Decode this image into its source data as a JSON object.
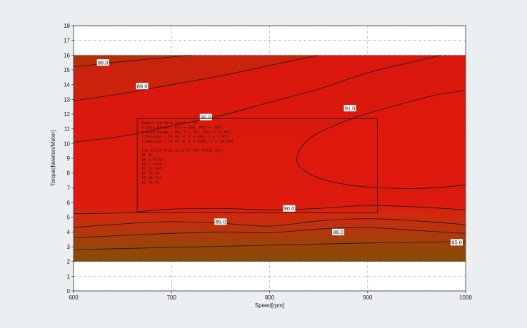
{
  "chart_data": {
    "type": "contour",
    "xlabel": "Speed[rpm]",
    "ylabel": "Torque[Newton/Meter]",
    "xlim": [
      600,
      1000
    ],
    "ylim": [
      0,
      18
    ],
    "xticks": [
      "600",
      "700",
      "800",
      "900",
      "1000"
    ],
    "yticks": [
      "0",
      "1",
      "2",
      "3",
      "4",
      "5",
      "6",
      "7",
      "8",
      "9",
      "10",
      "11",
      "12",
      "13",
      "14",
      "15",
      "16",
      "17",
      "18"
    ],
    "data_region": {
      "x": [
        600,
        1000
      ],
      "y": [
        2,
        16
      ]
    },
    "grid": "dashed",
    "contours": [
      {
        "label": "85.0",
        "level": 85,
        "points": [
          [
            600,
            2.8
          ],
          [
            700,
            2.95
          ],
          [
            800,
            3.1
          ],
          [
            900,
            3.25
          ],
          [
            1000,
            3.35
          ]
        ],
        "label_at": [
          1000,
          3.3
        ]
      },
      {
        "label": "88.0",
        "level": 88,
        "points": [
          [
            600,
            3.6
          ],
          [
            680,
            3.85
          ],
          [
            750,
            4.0
          ],
          [
            800,
            3.95
          ],
          [
            850,
            4.2
          ],
          [
            900,
            4.3
          ],
          [
            950,
            4.1
          ],
          [
            1000,
            3.9
          ]
        ],
        "label_at": [
          870,
          4.0
        ]
      },
      {
        "label": "88.0",
        "level": 88,
        "points": [
          [
            600,
            15.2
          ],
          [
            640,
            15.5
          ],
          [
            680,
            15.75
          ],
          [
            720,
            16.0
          ]
        ],
        "label_at": [
          630,
          15.5
        ]
      },
      {
        "label": "89.0",
        "level": 89,
        "points": [
          [
            600,
            4.3
          ],
          [
            650,
            4.55
          ],
          [
            700,
            4.7
          ],
          [
            750,
            4.6
          ],
          [
            800,
            4.4
          ],
          [
            850,
            4.75
          ],
          [
            900,
            4.9
          ],
          [
            950,
            4.75
          ],
          [
            1000,
            4.5
          ]
        ],
        "label_at": [
          750,
          4.7
        ]
      },
      {
        "label": "89.0",
        "level": 89,
        "points": [
          [
            600,
            12.9
          ],
          [
            650,
            13.4
          ],
          [
            700,
            14.0
          ],
          [
            750,
            14.6
          ],
          [
            800,
            15.3
          ],
          [
            850,
            16.0
          ]
        ],
        "label_at": [
          670,
          13.9
        ]
      },
      {
        "label": "90.0",
        "level": 90,
        "points": [
          [
            600,
            5.25
          ],
          [
            650,
            5.3
          ],
          [
            700,
            5.55
          ],
          [
            750,
            5.6
          ],
          [
            800,
            5.5
          ],
          [
            850,
            5.6
          ],
          [
            900,
            5.8
          ],
          [
            950,
            5.7
          ],
          [
            1000,
            5.5
          ]
        ],
        "label_at": [
          820,
          5.6
        ]
      },
      {
        "label": "90.0",
        "level": 90,
        "points": [
          [
            600,
            10.1
          ],
          [
            650,
            10.5
          ],
          [
            700,
            11.2
          ],
          [
            750,
            11.9
          ],
          [
            800,
            12.8
          ],
          [
            850,
            13.7
          ],
          [
            900,
            14.8
          ],
          [
            950,
            15.6
          ],
          [
            975,
            16.0
          ]
        ],
        "label_at": [
          735,
          11.8
        ]
      },
      {
        "label": "91.0",
        "level": 91,
        "points": [
          [
            1000,
            13.6
          ],
          [
            970,
            13.3
          ],
          [
            930,
            12.6
          ],
          [
            880,
            11.6
          ],
          [
            840,
            10.3
          ],
          [
            828,
            8.8
          ],
          [
            845,
            7.8
          ],
          [
            880,
            7.2
          ],
          [
            930,
            6.95
          ],
          [
            970,
            7.0
          ],
          [
            1000,
            7.2
          ]
        ],
        "label_at": [
          882,
          12.4
        ]
      }
    ],
    "stats_box": {
      "lines": [
        "Number of Data points: 15",
        "X-Data Range        : Min = 600, Max = 1000",
        "Y-Data Range        : Min = 1.954, Max = 16.002",
        "Z-Minimum           : 83.98 at X = 600, Y = 1.972",
        "Z-Maximum           : 91.67 at X = 1000, Y = 10.368",
        "",
        "    Iso-Value        Area in % of the total 0xy:",
        "         85              05",
        "         88          0.95245",
        "         89             1.3634",
        "         87            12.106",
        "         89             24.64",
        "         90            43.794",
        "         91             94.95"
      ]
    },
    "colors": {
      "background": "#eceff1",
      "plot_bg": "#ffffff",
      "high": "#d9170d",
      "mid": "#c22a0c",
      "low": "#8a4a08",
      "contour_line": "#1a1a1a"
    }
  }
}
